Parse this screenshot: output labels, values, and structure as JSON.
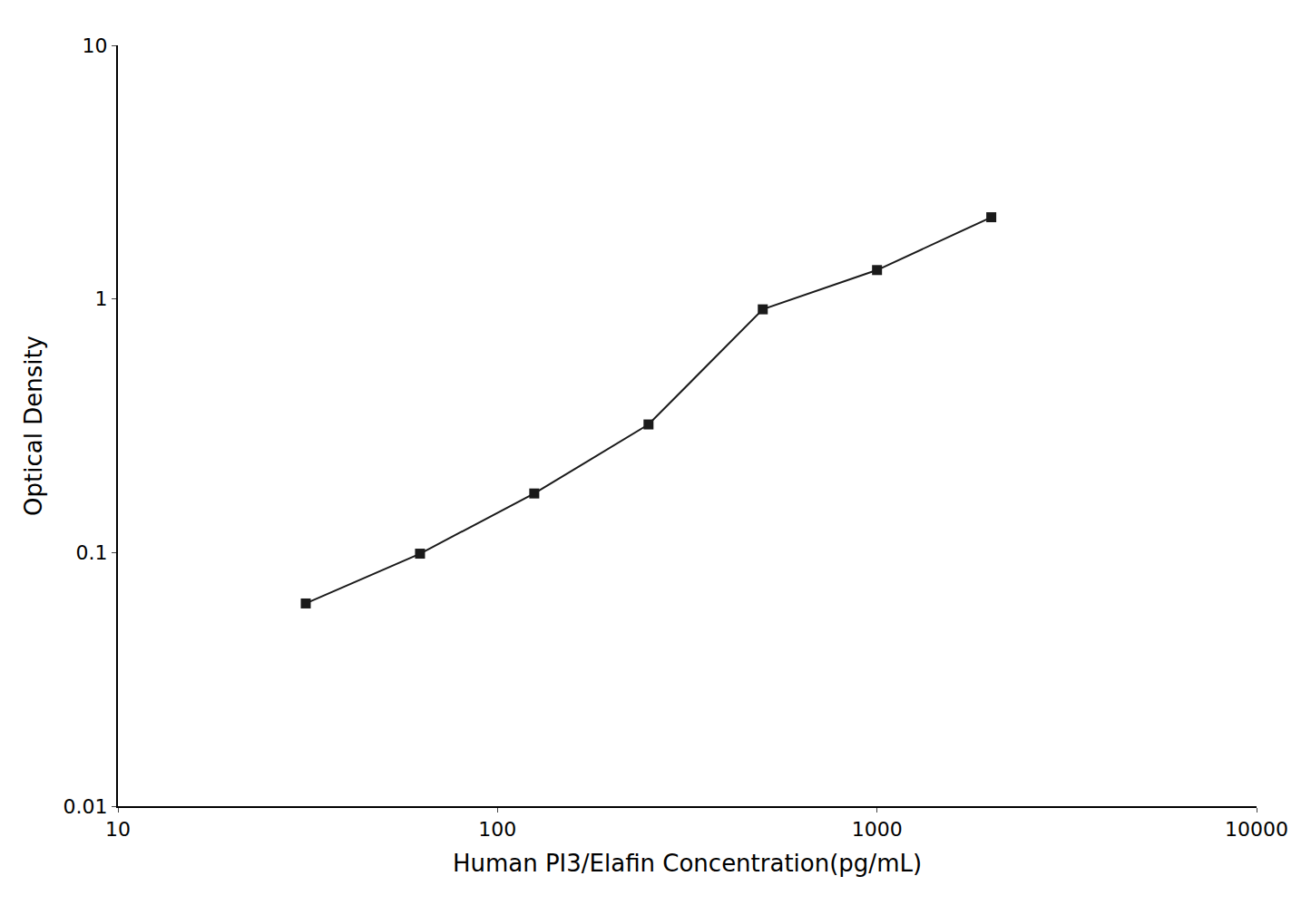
{
  "chart_data": {
    "type": "line",
    "x": [
      31.25,
      62.5,
      125,
      250,
      500,
      1000,
      2000
    ],
    "values": [
      0.063,
      0.099,
      0.171,
      0.32,
      0.91,
      1.3,
      2.1
    ],
    "xlabel": "Human PI3/Elafin Concentration(pg/mL)",
    "ylabel": "Optical Density",
    "xlim": [
      10,
      10000
    ],
    "ylim": [
      0.01,
      10
    ],
    "xticks": [
      10,
      100,
      1000,
      10000
    ],
    "yticks": [
      0.01,
      0.1,
      1,
      10
    ],
    "log": true,
    "grid": false,
    "color": "#1a1a1a",
    "marker": "square",
    "line_style": "solid"
  }
}
